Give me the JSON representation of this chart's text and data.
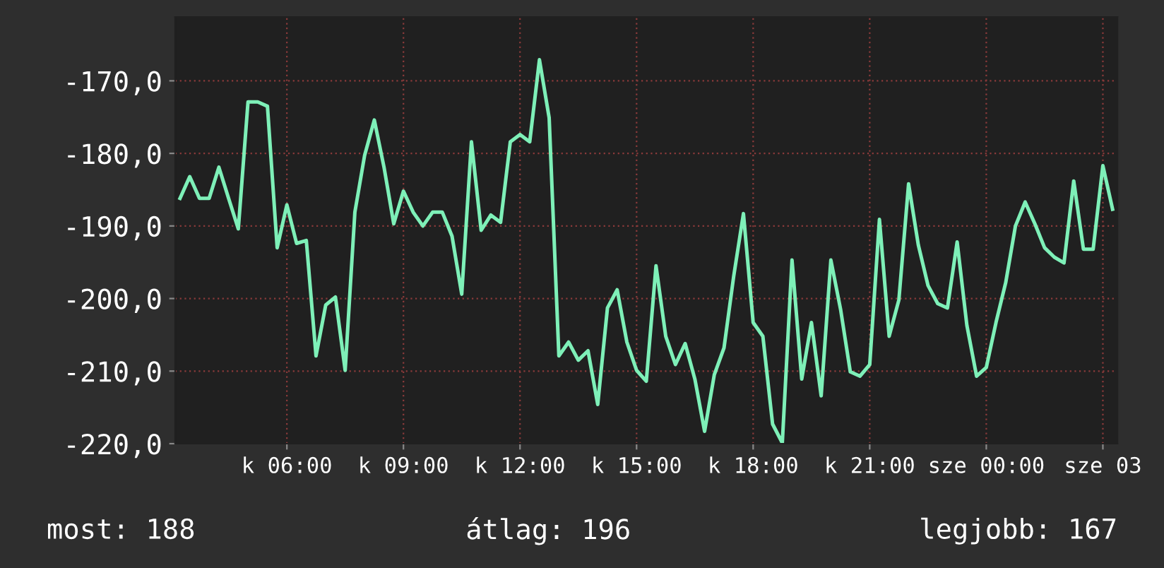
{
  "chart_data": {
    "type": "line",
    "categories": [
      null,
      null,
      null,
      null,
      null,
      null,
      null,
      null,
      null,
      null,
      null,
      "k 06:00",
      null,
      null,
      null,
      null,
      null,
      null,
      null,
      null,
      null,
      null,
      null,
      "k 09:00",
      null,
      null,
      null,
      null,
      null,
      null,
      null,
      null,
      null,
      null,
      null,
      "k 12:00",
      null,
      null,
      null,
      null,
      null,
      null,
      null,
      null,
      null,
      null,
      null,
      "k 15:00",
      null,
      null,
      null,
      null,
      null,
      null,
      null,
      null,
      null,
      null,
      null,
      "k 18:00",
      null,
      null,
      null,
      null,
      null,
      null,
      null,
      null,
      null,
      null,
      null,
      "k 21:00",
      null,
      null,
      null,
      null,
      null,
      null,
      null,
      null,
      null,
      null,
      null,
      "sze 00:00",
      null,
      null,
      null,
      null,
      null,
      null,
      null,
      null,
      null,
      null,
      null,
      "sze 03",
      null
    ],
    "series": [
      {
        "color": "#7ef0b8",
        "values": [
          -186.2,
          -183.2,
          -186.2,
          -186.2,
          -181.9,
          -186.2,
          -190.4,
          -172.9,
          -172.9,
          -173.5,
          -193.0,
          -187.1,
          -192.4,
          -192.0,
          -207.9,
          -200.9,
          -199.8,
          -209.9,
          -188.1,
          -180.3,
          -175.4,
          -181.9,
          -189.7,
          -185.2,
          -188.1,
          -190.0,
          -188.1,
          -188.1,
          -191.4,
          -199.4,
          -178.4,
          -190.6,
          -188.5,
          -189.5,
          -178.4,
          -177.4,
          -178.4,
          -167.1,
          -175.1,
          -207.9,
          -206.0,
          -208.5,
          -207.2,
          -214.6,
          -201.3,
          -198.8,
          -206.0,
          -209.9,
          -211.4,
          -195.5,
          -205.2,
          -209.1,
          -206.2,
          -211.1,
          -218.3,
          -210.5,
          -206.8,
          -196.9,
          -188.3,
          -203.3,
          -205.2,
          -217.3,
          -219.9,
          -194.7,
          -211.1,
          -203.3,
          -213.4,
          -194.7,
          -201.5,
          -210.1,
          -210.7,
          -209.1,
          -189.1,
          -205.2,
          -200.2,
          -184.2,
          -192.6,
          -198.2,
          -200.7,
          -201.3,
          -192.2,
          -203.7,
          -210.7,
          -209.5,
          -203.3,
          -197.8,
          -190.0,
          -186.7,
          -189.7,
          -193.0,
          -194.3,
          -195.1,
          -183.8,
          -193.2,
          -193.2,
          -181.7,
          -187.7
        ]
      }
    ],
    "ylim": [
      -220,
      -161.2
    ],
    "yticks": [
      {
        "value": -220,
        "label": "-220,0"
      },
      {
        "value": -210,
        "label": "-210,0"
      },
      {
        "value": -200,
        "label": "-200,0"
      },
      {
        "value": -190,
        "label": "-190,0"
      },
      {
        "value": -180,
        "label": "-180,0"
      },
      {
        "value": -170,
        "label": "-170,0"
      }
    ],
    "grid": true,
    "line_style": "solid",
    "annotations": [
      "most: 188",
      "átlag: 196",
      "legjobb: 167"
    ]
  }
}
